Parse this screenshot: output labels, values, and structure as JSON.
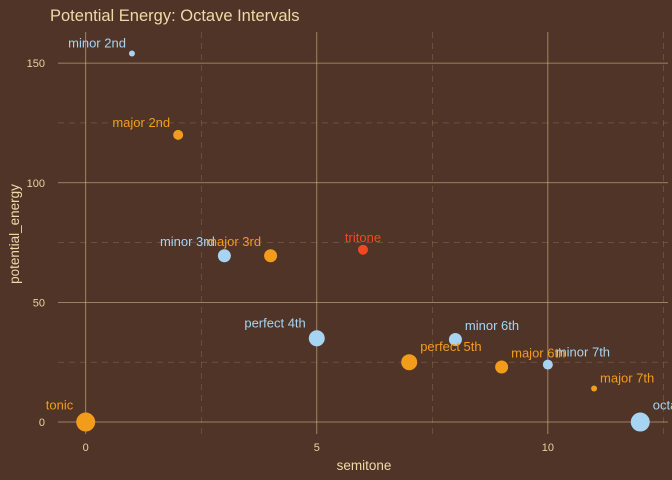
{
  "chart_data": {
    "type": "scatter",
    "title": "Potential Energy: Octave Intervals",
    "xlabel": "semitone",
    "ylabel": "potential_energy",
    "xlim": [
      -0.6,
      12.6
    ],
    "ylim": [
      -5,
      163
    ],
    "x_ticks": [
      0,
      5,
      10
    ],
    "x_minor_ticks": [
      2.5,
      7.5,
      12.5
    ],
    "y_ticks": [
      0,
      50,
      100,
      150
    ],
    "y_minor_ticks": [
      25,
      75,
      125
    ],
    "grid": true,
    "legend": "none",
    "colors": {
      "background": "#4f3427",
      "blue": "#a6d4f2",
      "orange": "#f39c1c",
      "red": "#f5471f",
      "text": "#f0d9a8"
    },
    "points": [
      {
        "label": "tonic",
        "x": 0,
        "y": 0,
        "size": 5,
        "color": "orange"
      },
      {
        "label": "minor 2nd",
        "x": 1,
        "y": 154,
        "size": 1,
        "color": "blue"
      },
      {
        "label": "major 2nd",
        "x": 2,
        "y": 120,
        "size": 2,
        "color": "orange"
      },
      {
        "label": "minor 3rd",
        "x": 3,
        "y": 69.5,
        "size": 3,
        "color": "blue"
      },
      {
        "label": "major 3rd",
        "x": 4,
        "y": 69.5,
        "size": 3,
        "color": "orange"
      },
      {
        "label": "perfect 4th",
        "x": 5,
        "y": 35,
        "size": 4,
        "color": "blue"
      },
      {
        "label": "tritone",
        "x": 6,
        "y": 72,
        "size": 2,
        "color": "red"
      },
      {
        "label": "perfect 5th",
        "x": 7,
        "y": 25,
        "size": 4,
        "color": "orange"
      },
      {
        "label": "minor 6th",
        "x": 8,
        "y": 34.5,
        "size": 3,
        "color": "blue"
      },
      {
        "label": "major 6th",
        "x": 9,
        "y": 23,
        "size": 3,
        "color": "orange"
      },
      {
        "label": "minor 7th",
        "x": 10,
        "y": 24,
        "size": 2,
        "color": "blue"
      },
      {
        "label": "major 7th",
        "x": 11,
        "y": 14,
        "size": 1,
        "color": "orange"
      },
      {
        "label": "octave",
        "x": 12,
        "y": 0,
        "size": 5,
        "color": "blue"
      }
    ]
  }
}
